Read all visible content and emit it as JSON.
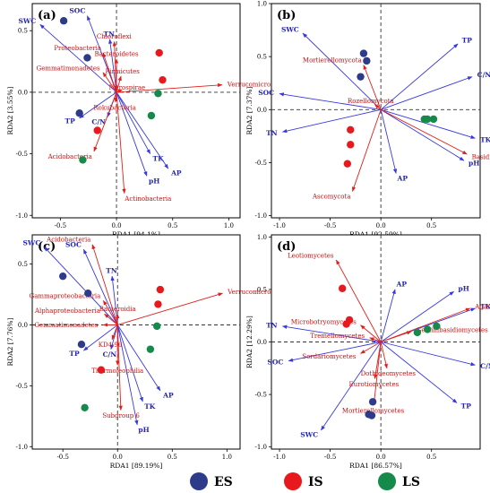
{
  "colors": {
    "ES": "#2e3b8a",
    "IS": "#e8191c",
    "LS": "#168a4a",
    "env_arrow": "#3838e0",
    "taxa_arrow": "#e0201c",
    "env_text": "#2525b0",
    "taxa_text": "#cc1010",
    "dash": "#333333"
  },
  "legend": {
    "items": [
      {
        "key": "ES",
        "label": "ES"
      },
      {
        "key": "IS",
        "label": "IS"
      },
      {
        "key": "LS",
        "label": "LS"
      }
    ]
  },
  "chart_data": [
    {
      "type": "scatter",
      "panel": "(a)",
      "xlabel": "RDA1 [94.1%]",
      "ylabel": "RDA2 [3.55%]",
      "xlim": [
        -0.75,
        1.1
      ],
      "ylim": [
        -1.02,
        0.72
      ],
      "xticks": [
        -0.5,
        0.0,
        0.5,
        1.0
      ],
      "yticks": [
        -1.0,
        -0.5,
        0.0,
        0.5
      ],
      "xticklabels": [
        "-0.5",
        "0.0",
        "0.5",
        "1.0"
      ],
      "yticklabels": [
        "-1.0",
        "-0.5",
        "0.0",
        "0.5"
      ],
      "env": [
        {
          "label": "SWC",
          "x": -0.68,
          "y": 0.55
        },
        {
          "label": "SOC",
          "x": -0.26,
          "y": 0.62
        },
        {
          "label": "TN",
          "x": -0.06,
          "y": 0.43
        },
        {
          "label": "TP",
          "x": -0.33,
          "y": -0.21
        },
        {
          "label": "C/N",
          "x": -0.08,
          "y": -0.2
        },
        {
          "label": "TK",
          "x": 0.3,
          "y": -0.5
        },
        {
          "label": "pH",
          "x": 0.27,
          "y": -0.68
        },
        {
          "label": "AP",
          "x": 0.46,
          "y": -0.62
        }
      ],
      "taxa": [
        {
          "label": "Chloroflexi",
          "x": -0.02,
          "y": 0.41
        },
        {
          "label": "Proteobacteria",
          "x": -0.12,
          "y": 0.32
        },
        {
          "label": "Bacteroidetes",
          "x": 0.0,
          "y": 0.27
        },
        {
          "label": "Firmicutes",
          "x": 0.04,
          "y": 0.13
        },
        {
          "label": "Gemmatimonadetes",
          "x": -0.12,
          "y": 0.16
        },
        {
          "label": "Verrucomicrobia",
          "x": 0.94,
          "y": 0.06
        },
        {
          "label": "Actinobacteria",
          "x": 0.07,
          "y": -0.82
        },
        {
          "label": "Acidobacteria",
          "x": -0.2,
          "y": -0.48
        },
        {
          "label": "Rokubacteria",
          "x": -0.01,
          "y": -0.08
        },
        {
          "label": "Nitrospirae",
          "x": 0.05,
          "y": 0.02
        }
      ],
      "points": [
        {
          "group": "ES",
          "x": -0.47,
          "y": 0.58
        },
        {
          "group": "ES",
          "x": -0.26,
          "y": 0.28
        },
        {
          "group": "ES",
          "x": -0.33,
          "y": -0.17
        },
        {
          "group": "IS",
          "x": 0.38,
          "y": 0.32
        },
        {
          "group": "IS",
          "x": 0.41,
          "y": 0.1
        },
        {
          "group": "IS",
          "x": -0.17,
          "y": -0.31
        },
        {
          "group": "LS",
          "x": 0.37,
          "y": -0.01
        },
        {
          "group": "LS",
          "x": 0.31,
          "y": -0.19
        },
        {
          "group": "LS",
          "x": -0.3,
          "y": -0.55
        }
      ]
    },
    {
      "type": "scatter",
      "panel": "(b)",
      "xlabel": "RDA1 [92.59%]",
      "ylabel": "RDA2 [7.37%]",
      "xlim": [
        -1.08,
        0.98
      ],
      "ylim": [
        -1.02,
        1.0
      ],
      "xticks": [
        -1.0,
        -0.5,
        0.0,
        0.5
      ],
      "yticks": [
        -1.0,
        -0.5,
        0.0,
        0.5,
        1.0
      ],
      "xticklabels": [
        "-1.0",
        "-0.5",
        "0.0",
        "0.5"
      ],
      "yticklabels": [
        "-1.0",
        "-0.5",
        "0.0",
        "0.5",
        "1.0"
      ],
      "env": [
        {
          "label": "SWC",
          "x": -0.77,
          "y": 0.72
        },
        {
          "label": "TP",
          "x": 0.76,
          "y": 0.62
        },
        {
          "label": "C/N",
          "x": 0.9,
          "y": 0.31
        },
        {
          "label": "SOC",
          "x": -1.0,
          "y": 0.15
        },
        {
          "label": "TN",
          "x": -0.97,
          "y": -0.21
        },
        {
          "label": "TK",
          "x": 0.93,
          "y": -0.27
        },
        {
          "label": "AP",
          "x": 0.15,
          "y": -0.6
        },
        {
          "label": "pH",
          "x": 0.82,
          "y": -0.48
        }
      ],
      "taxa": [
        {
          "label": "Mortierellomycota",
          "x": -0.17,
          "y": 0.42
        },
        {
          "label": "Rozellomycota",
          "x": -0.06,
          "y": 0.05
        },
        {
          "label": "Basidiomycota",
          "x": 0.85,
          "y": -0.42
        },
        {
          "label": "Ascomycota",
          "x": -0.28,
          "y": -0.77
        }
      ],
      "points": [
        {
          "group": "ES",
          "x": -0.17,
          "y": 0.53
        },
        {
          "group": "ES",
          "x": -0.14,
          "y": 0.46
        },
        {
          "group": "ES",
          "x": -0.2,
          "y": 0.31
        },
        {
          "group": "IS",
          "x": -0.3,
          "y": -0.19
        },
        {
          "group": "IS",
          "x": -0.3,
          "y": -0.33
        },
        {
          "group": "IS",
          "x": -0.33,
          "y": -0.51
        },
        {
          "group": "LS",
          "x": 0.43,
          "y": -0.09
        },
        {
          "group": "LS",
          "x": 0.46,
          "y": -0.09
        },
        {
          "group": "LS",
          "x": 0.52,
          "y": -0.09
        }
      ]
    },
    {
      "type": "scatter",
      "panel": "(c)",
      "xlabel": "RDA1 [89.19%]",
      "ylabel": "RDA2 [7.76%]",
      "xlim": [
        -0.78,
        1.12
      ],
      "ylim": [
        -1.02,
        0.74
      ],
      "xticks": [
        -0.5,
        0.0,
        0.5,
        1.0
      ],
      "yticks": [
        -1.0,
        -0.5,
        0.0,
        0.5
      ],
      "xticklabels": [
        "-0.5",
        "0.0",
        "0.5",
        "1.0"
      ],
      "yticklabels": [
        "-1.0",
        "-0.5",
        "0.0",
        "0.5"
      ],
      "env": [
        {
          "label": "SWC",
          "x": -0.67,
          "y": 0.64
        },
        {
          "label": "SOC",
          "x": -0.31,
          "y": 0.62
        },
        {
          "label": "TN",
          "x": -0.05,
          "y": 0.4
        },
        {
          "label": "TP",
          "x": -0.31,
          "y": -0.21
        },
        {
          "label": "C/N",
          "x": -0.06,
          "y": -0.2
        },
        {
          "label": "AP",
          "x": 0.39,
          "y": -0.54
        },
        {
          "label": "TK",
          "x": 0.23,
          "y": -0.63
        },
        {
          "label": "pH",
          "x": 0.18,
          "y": -0.82
        }
      ],
      "taxa": [
        {
          "label": "Acidobacteria",
          "x": -0.23,
          "y": 0.66
        },
        {
          "label": "Verrucomicrobiae",
          "x": 0.96,
          "y": 0.26
        },
        {
          "label": "Gammaproteobacteria",
          "x": -0.13,
          "y": 0.2
        },
        {
          "label": "Alphaproteobacteria",
          "x": -0.12,
          "y": 0.09
        },
        {
          "label": "Bacteroidia",
          "x": 0.0,
          "y": 0.09
        },
        {
          "label": "Gemmatimonadetes",
          "x": -0.13,
          "y": 0.0
        },
        {
          "label": "KD4-96",
          "x": -0.05,
          "y": -0.12
        },
        {
          "label": "Thermoleophilia",
          "x": 0.0,
          "y": -0.33
        },
        {
          "label": "Subgroup 6",
          "x": 0.03,
          "y": -0.7
        }
      ],
      "points": [
        {
          "group": "ES",
          "x": -0.5,
          "y": 0.4
        },
        {
          "group": "ES",
          "x": -0.27,
          "y": 0.26
        },
        {
          "group": "ES",
          "x": -0.33,
          "y": -0.16
        },
        {
          "group": "IS",
          "x": 0.39,
          "y": 0.29
        },
        {
          "group": "IS",
          "x": 0.37,
          "y": 0.17
        },
        {
          "group": "IS",
          "x": -0.15,
          "y": -0.37
        },
        {
          "group": "LS",
          "x": 0.36,
          "y": -0.01
        },
        {
          "group": "LS",
          "x": 0.3,
          "y": -0.2
        },
        {
          "group": "LS",
          "x": -0.3,
          "y": -0.68
        }
      ]
    },
    {
      "type": "scatter",
      "panel": "(d)",
      "xlabel": "RDA1 [86.57%]",
      "ylabel": "RDA2 [12.29%]",
      "xlim": [
        -1.08,
        0.98
      ],
      "ylim": [
        -1.02,
        1.02
      ],
      "xticks": [
        -1.0,
        -0.5,
        0.0,
        0.5
      ],
      "yticks": [
        -1.0,
        -0.5,
        0.0,
        0.5,
        1.0
      ],
      "xticklabels": [
        "-1.0",
        "-0.5",
        "0.0",
        "0.5"
      ],
      "yticklabels": [
        "-1.0",
        "-0.5",
        "0.0",
        "0.5",
        "1.0"
      ],
      "env": [
        {
          "label": "AP",
          "x": 0.14,
          "y": 0.5
        },
        {
          "label": "pH",
          "x": 0.72,
          "y": 0.48
        },
        {
          "label": "TK",
          "x": 0.93,
          "y": 0.32
        },
        {
          "label": "TN",
          "x": -0.97,
          "y": 0.15
        },
        {
          "label": "SOC",
          "x": -0.91,
          "y": -0.18
        },
        {
          "label": "C/N",
          "x": 0.93,
          "y": -0.22
        },
        {
          "label": "TP",
          "x": 0.75,
          "y": -0.58
        },
        {
          "label": "SWC",
          "x": -0.59,
          "y": -0.84
        }
      ],
      "taxa": [
        {
          "label": "Leotiomycetes",
          "x": -0.44,
          "y": 0.78
        },
        {
          "label": "Agaricomycetes",
          "x": 0.88,
          "y": 0.32
        },
        {
          "label": "Microbotryomycetes",
          "x": -0.2,
          "y": 0.16
        },
        {
          "label": "Geminibasidiomycetes",
          "x": 0.3,
          "y": 0.1
        },
        {
          "label": "Tremellomycetes",
          "x": -0.11,
          "y": 0.04
        },
        {
          "label": "Sordariomycetes",
          "x": -0.2,
          "y": -0.11
        },
        {
          "label": "Dothideomycetes",
          "x": 0.06,
          "y": -0.25
        },
        {
          "label": "Eurotiomycetes",
          "x": -0.06,
          "y": -0.35
        },
        {
          "label": "Mortierellomycetes",
          "x": -0.07,
          "y": -0.6
        }
      ],
      "points": [
        {
          "group": "ES",
          "x": -0.08,
          "y": -0.57
        },
        {
          "group": "ES",
          "x": -0.12,
          "y": -0.69
        },
        {
          "group": "ES",
          "x": -0.09,
          "y": -0.7
        },
        {
          "group": "IS",
          "x": -0.38,
          "y": 0.51
        },
        {
          "group": "IS",
          "x": -0.31,
          "y": 0.21
        },
        {
          "group": "IS",
          "x": -0.34,
          "y": 0.17
        },
        {
          "group": "LS",
          "x": 0.36,
          "y": 0.09
        },
        {
          "group": "LS",
          "x": 0.46,
          "y": 0.12
        },
        {
          "group": "LS",
          "x": 0.55,
          "y": 0.15
        }
      ]
    }
  ]
}
